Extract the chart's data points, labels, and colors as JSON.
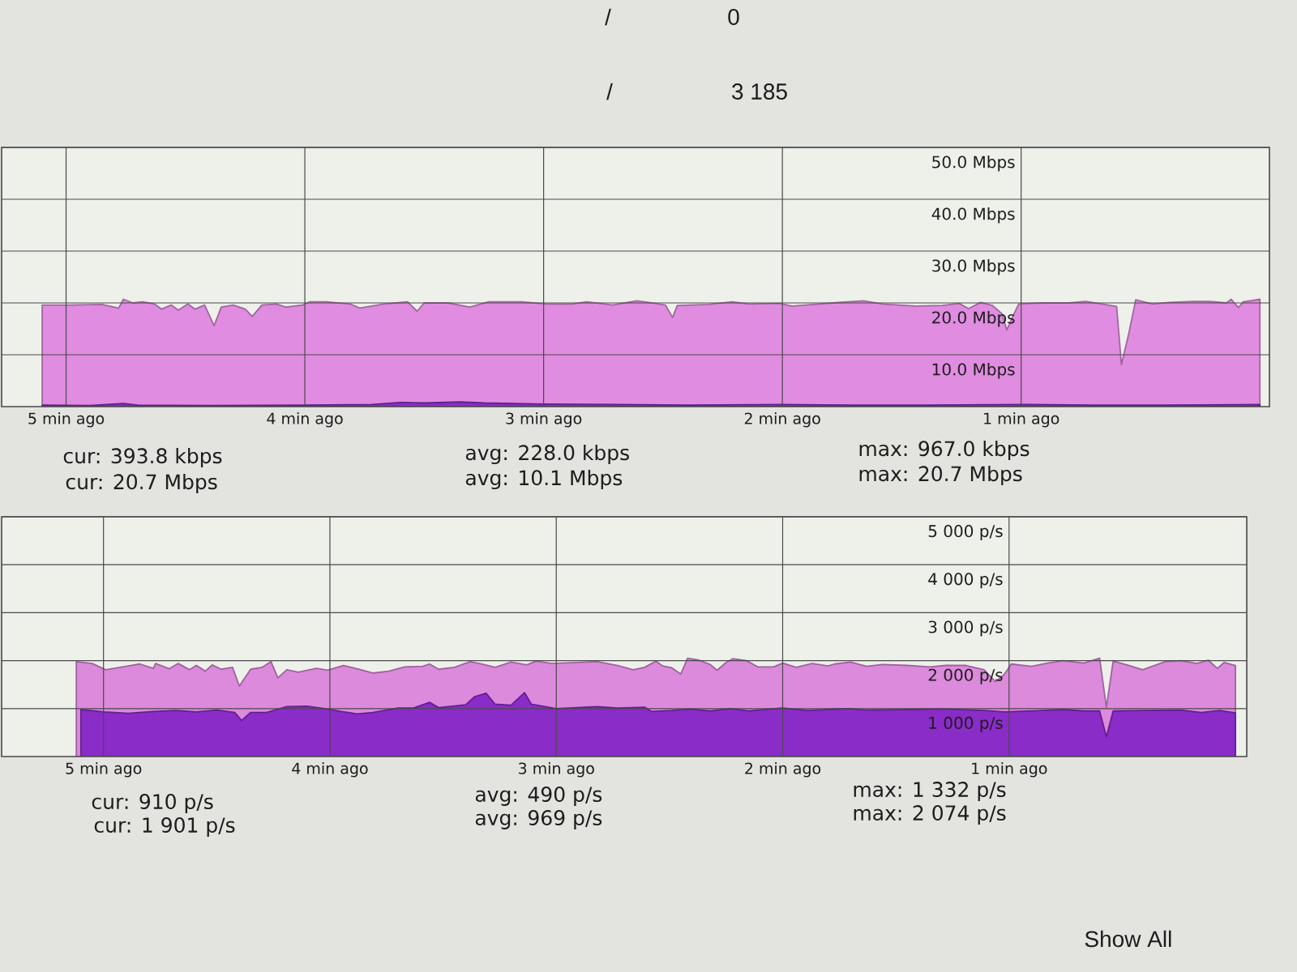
{
  "chart_data": [
    {
      "type": "area",
      "xlim": [
        -5.27,
        0.04
      ],
      "ylim": [
        0,
        50
      ],
      "xticks": [
        {
          "value": -5,
          "label": "5 min ago"
        },
        {
          "value": -4,
          "label": "4 min ago"
        },
        {
          "value": -3,
          "label": "3 min ago"
        },
        {
          "value": -2,
          "label": "2 min ago"
        },
        {
          "value": -1,
          "label": "1 min ago"
        }
      ],
      "yticks": [
        {
          "value": 10,
          "label": "10.0 Mbps"
        },
        {
          "value": 20,
          "label": "20.0 Mbps"
        },
        {
          "value": 30,
          "label": "30.0 Mbps"
        },
        {
          "value": 40,
          "label": "40.0 Mbps"
        },
        {
          "value": 50,
          "label": "50.0 Mbps"
        }
      ],
      "grid": true,
      "series": [
        {
          "color": "#e08ce0",
          "x": [
            -5.1,
            -4.99,
            -4.85,
            -4.78,
            -4.76,
            -4.72,
            -4.68,
            -4.63,
            -4.6,
            -4.56,
            -4.53,
            -4.49,
            -4.46,
            -4.42,
            -4.38,
            -4.35,
            -4.3,
            -4.25,
            -4.22,
            -4.18,
            -4.12,
            -4.08,
            -4.01,
            -3.98,
            -3.91,
            -3.81,
            -3.77,
            -3.67,
            -3.57,
            -3.53,
            -3.5,
            -3.4,
            -3.31,
            -3.23,
            -3.09,
            -2.99,
            -2.88,
            -2.82,
            -2.71,
            -2.61,
            -2.56,
            -2.49,
            -2.46,
            -2.44,
            -2.31,
            -2.21,
            -2.14,
            -2.01,
            -1.96,
            -1.87,
            -1.79,
            -1.66,
            -1.58,
            -1.44,
            -1.33,
            -1.26,
            -1.22,
            -1.17,
            -1.12,
            -1.08,
            -1.06,
            -1.03,
            -1.01,
            -0.91,
            -0.8,
            -0.73,
            -0.65,
            -0.6,
            -0.58,
            -0.55,
            -0.52,
            -0.45,
            -0.38,
            -0.28,
            -0.21,
            -0.14,
            -0.12,
            -0.09,
            -0.07,
            -0.03,
            0.0
          ],
          "values": [
            19.6,
            19.6,
            19.7,
            19.0,
            20.7,
            20.0,
            20.2,
            19.8,
            18.8,
            19.6,
            18.6,
            19.8,
            18.8,
            19.6,
            15.6,
            19.2,
            19.6,
            18.8,
            17.4,
            19.6,
            19.8,
            19.2,
            19.6,
            20.2,
            20.2,
            19.8,
            19.0,
            19.8,
            20.2,
            18.4,
            20.0,
            20.0,
            19.2,
            20.2,
            20.2,
            19.8,
            19.8,
            20.2,
            19.6,
            20.4,
            20.1,
            19.6,
            17.2,
            19.5,
            19.7,
            20.2,
            19.8,
            19.9,
            19.4,
            19.7,
            20.0,
            20.4,
            19.8,
            19.4,
            19.5,
            19.9,
            18.9,
            20.1,
            19.5,
            17.9,
            14.8,
            17.9,
            19.8,
            20.0,
            20.0,
            20.3,
            19.7,
            19.3,
            8.1,
            13.9,
            20.6,
            19.8,
            20.1,
            20.3,
            20.3,
            20.0,
            20.7,
            19.1,
            20.2,
            20.5,
            20.7
          ]
        },
        {
          "color": "#8a2cc8",
          "x": [
            -5.1,
            -4.9,
            -4.76,
            -4.7,
            -4.4,
            -4.0,
            -3.72,
            -3.6,
            -3.5,
            -3.35,
            -3.25,
            -3.0,
            -2.7,
            -2.4,
            -2.0,
            -1.7,
            -1.4,
            -1.0,
            -0.7,
            -0.4,
            0.0
          ],
          "values": [
            0.3,
            0.2,
            0.6,
            0.3,
            0.2,
            0.3,
            0.4,
            0.8,
            0.7,
            0.9,
            0.7,
            0.5,
            0.4,
            0.3,
            0.4,
            0.3,
            0.3,
            0.4,
            0.3,
            0.3,
            0.4
          ]
        }
      ],
      "annotations": [
        "/",
        "0",
        "/",
        "3 185",
        "cur: 393.8 kbps",
        "cur: 20.7 Mbps",
        "avg: 228.0 kbps",
        "avg: 10.1 Mbps",
        "max: 967.0 kbps",
        "max: 20.7 Mbps"
      ]
    },
    {
      "type": "area",
      "xlim": [
        -5.45,
        0.05
      ],
      "ylim": [
        0,
        5000
      ],
      "xticks": [
        {
          "value": -5,
          "label": "5 min ago"
        },
        {
          "value": -4,
          "label": "4 min ago"
        },
        {
          "value": -3,
          "label": "3 min ago"
        },
        {
          "value": -2,
          "label": "2 min ago"
        },
        {
          "value": -1,
          "label": "1 min ago"
        }
      ],
      "yticks": [
        {
          "value": 1000,
          "label": "1 000 p/s"
        },
        {
          "value": 2000,
          "label": "2 000 p/s"
        },
        {
          "value": 3000,
          "label": "3 000 p/s"
        },
        {
          "value": 4000,
          "label": "4 000 p/s"
        },
        {
          "value": 5000,
          "label": "5 000 p/s"
        }
      ],
      "grid": true,
      "series": [
        {
          "color": "#dc8adc",
          "x": [
            -5.12,
            -5.05,
            -4.99,
            -4.89,
            -4.84,
            -4.78,
            -4.77,
            -4.71,
            -4.67,
            -4.62,
            -4.59,
            -4.55,
            -4.52,
            -4.48,
            -4.43,
            -4.4,
            -4.35,
            -4.3,
            -4.26,
            -4.23,
            -4.19,
            -4.14,
            -4.06,
            -4.01,
            -3.94,
            -3.88,
            -3.81,
            -3.74,
            -3.67,
            -3.59,
            -3.56,
            -3.52,
            -3.45,
            -3.38,
            -3.32,
            -3.27,
            -3.2,
            -3.13,
            -3.09,
            -3.02,
            -2.91,
            -2.82,
            -2.73,
            -2.66,
            -2.61,
            -2.56,
            -2.53,
            -2.49,
            -2.45,
            -2.42,
            -2.37,
            -2.32,
            -2.29,
            -2.25,
            -2.22,
            -2.16,
            -2.11,
            -2.04,
            -2.0,
            -1.94,
            -1.87,
            -1.8,
            -1.77,
            -1.7,
            -1.63,
            -1.56,
            -1.45,
            -1.35,
            -1.28,
            -1.19,
            -1.11,
            -1.06,
            -1.02,
            -0.99,
            -0.9,
            -0.83,
            -0.76,
            -0.67,
            -0.6,
            -0.57,
            -0.54,
            -0.47,
            -0.41,
            -0.31,
            -0.24,
            -0.17,
            -0.12,
            -0.08,
            -0.05,
            0.0
          ],
          "values": [
            1980,
            1940,
            1810,
            1890,
            1930,
            1840,
            1940,
            1830,
            1940,
            1810,
            1900,
            1780,
            1910,
            1820,
            1860,
            1470,
            1820,
            1860,
            1980,
            1640,
            1810,
            1760,
            1840,
            1800,
            1900,
            1830,
            1740,
            1780,
            1870,
            1880,
            1930,
            1820,
            1860,
            1980,
            1920,
            1860,
            1970,
            1910,
            1990,
            1940,
            1960,
            1980,
            1900,
            1810,
            1860,
            1990,
            1890,
            1850,
            1720,
            2050,
            2010,
            1920,
            1800,
            1960,
            2040,
            2000,
            1870,
            1870,
            1950,
            1860,
            1940,
            1890,
            1930,
            1970,
            1880,
            1920,
            1900,
            1870,
            1900,
            1900,
            1810,
            1560,
            1720,
            1930,
            1880,
            1950,
            2000,
            1950,
            2050,
            1030,
            1990,
            1900,
            1810,
            1980,
            2000,
            1940,
            2010,
            1840,
            1960,
            1900
          ]
        },
        {
          "color": "#8a2cc8",
          "x": [
            -5.1,
            -5.0,
            -4.89,
            -4.78,
            -4.68,
            -4.59,
            -4.5,
            -4.42,
            -4.39,
            -4.35,
            -4.28,
            -4.19,
            -4.1,
            -4.01,
            -3.95,
            -3.88,
            -3.81,
            -3.7,
            -3.63,
            -3.56,
            -3.52,
            -3.4,
            -3.36,
            -3.31,
            -3.27,
            -3.2,
            -3.14,
            -3.11,
            -3.0,
            -2.91,
            -2.82,
            -2.73,
            -2.61,
            -2.58,
            -2.49,
            -2.41,
            -2.32,
            -2.23,
            -2.15,
            -2.06,
            -2.0,
            -1.89,
            -1.8,
            -1.71,
            -1.63,
            -1.45,
            -1.28,
            -1.11,
            -1.02,
            -0.85,
            -0.76,
            -0.67,
            -0.6,
            -0.57,
            -0.54,
            -0.41,
            -0.24,
            -0.15,
            -0.07,
            0.0
          ],
          "values": [
            980,
            930,
            900,
            940,
            960,
            930,
            970,
            920,
            750,
            920,
            920,
            1040,
            1050,
            990,
            940,
            890,
            920,
            1010,
            1010,
            1130,
            1020,
            1080,
            1250,
            1320,
            1090,
            1070,
            1330,
            1090,
            1000,
            1020,
            1040,
            1010,
            1030,
            940,
            960,
            990,
            950,
            1000,
            950,
            990,
            1010,
            960,
            980,
            1000,
            970,
            980,
            990,
            960,
            930,
            960,
            980,
            950,
            950,
            410,
            950,
            960,
            970,
            920,
            960,
            910
          ]
        }
      ],
      "annotations": [
        "cur: 910 p/s",
        "cur: 1 901 p/s",
        "avg: 490 p/s",
        "avg: 969 p/s",
        "max: 1 332 p/s",
        "max: 2 074 p/s",
        "Show All"
      ]
    }
  ]
}
